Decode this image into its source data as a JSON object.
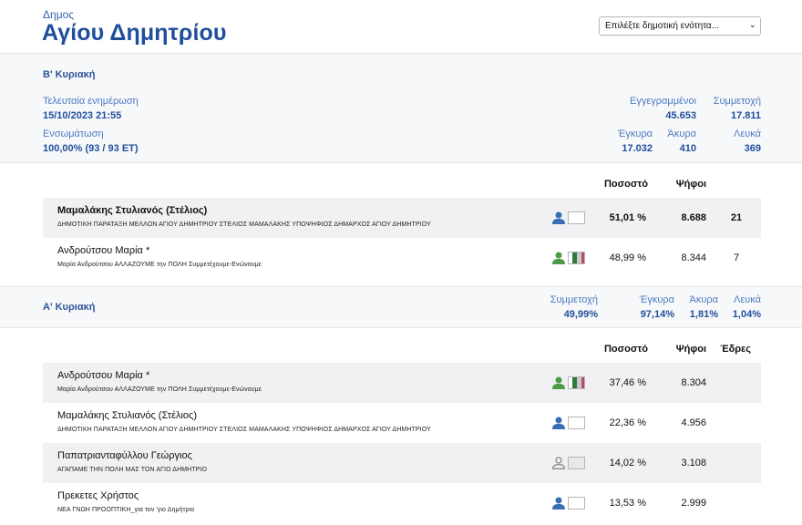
{
  "header": {
    "municipality_label": "Δημος",
    "municipality_name": "Αγίου Δημητρίου",
    "unit_select_value": "Επιλέξτε δημοτική ενότητα..."
  },
  "round_b": {
    "title": "Β' Κυριακή",
    "last_update_label": "Τελευταία ενημέρωση",
    "last_update_value": "15/10/2023 21:55",
    "integration_label": "Ενσωμάτωση",
    "integration_value": "100,00% (93 / 93 ΕΤ)",
    "registered_label": "Εγγεγραμμένοι",
    "registered_value": "45.653",
    "turnout_label": "Συμμετοχή",
    "turnout_value": "17.811",
    "valid_label": "Έγκυρα",
    "valid_value": "17.032",
    "invalid_label": "Άκυρα",
    "invalid_value": "410",
    "blank_label": "Λευκά",
    "blank_value": "369",
    "col_percent": "Ποσοστό",
    "col_votes": "Ψήφοι",
    "candidates": [
      {
        "name": "Μαμαλάκης Στυλιανός (Στέλιος)",
        "party": "ΔΗΜΟΤΙΚΗ ΠΑΡΑΤΑΞΗ ΜΕΛΛΟΝ ΑΓΙΟΥ ΔΗΜΗΤΡΙΟΥ ΣΤΕΛΙΟΣ ΜΑΜΑΛΑΚΗΣ ΥΠΟΨΗΦΙΟΣ ΔΗΜΑΡΧΟΣ ΑΓΙΟΥ ΔΗΜΗΤΡΙΟΥ",
        "percent": "51,01 %",
        "votes": "8.688",
        "seats": "21",
        "icon_color": "#3a6db5",
        "flag": "plain"
      },
      {
        "name": "Ανδρούτσου Μαρία *",
        "party": "Μαρία Ανδρούτσου ΑΛΛΑΖΟΥΜΕ την ΠΟΛΗ Συμμετέχουμε-Ενώνουμε",
        "percent": "48,99 %",
        "votes": "8.344",
        "seats": "7",
        "icon_color": "#4f9a44",
        "flag": "tricolor"
      }
    ]
  },
  "round_a": {
    "title": "Α' Κυριακή",
    "turnout_label": "Συμμετοχή",
    "turnout_value": "49,99%",
    "valid_label": "Έγκυρα",
    "valid_value": "97,14%",
    "invalid_label": "Άκυρα",
    "invalid_value": "1,81%",
    "blank_label": "Λευκά",
    "blank_value": "1,04%",
    "col_percent": "Ποσοστό",
    "col_votes": "Ψήφοι",
    "col_seats": "Έδρες",
    "candidates": [
      {
        "name": "Ανδρούτσου Μαρία *",
        "party": "Μαρία Ανδρούτσου ΑΛΛΑΖΟΥΜΕ την ΠΟΛΗ Συμμετέχουμε-Ενώνουμε",
        "percent": "37,46 %",
        "votes": "8.304",
        "icon_color": "#4f9a44",
        "flag": "tricolor"
      },
      {
        "name": "Μαμαλάκης Στυλιανός (Στέλιος)",
        "party": "ΔΗΜΟΤΙΚΗ ΠΑΡΑΤΑΞΗ ΜΕΛΛΟΝ ΑΓΙΟΥ ΔΗΜΗΤΡΙΟΥ ΣΤΕΛΙΟΣ ΜΑΜΑΛΑΚΗΣ ΥΠΟΨΗΦΙΟΣ ΔΗΜΑΡΧΟΣ ΑΓΙΟΥ ΔΗΜΗΤΡΙΟΥ",
        "percent": "22,36 %",
        "votes": "4.956",
        "icon_color": "#3a6db5",
        "flag": "plain"
      },
      {
        "name": "Παπατριανταφύλλου Γεώργιος",
        "party": "ΑΓΑΠΑΜΕ ΤΗΝ ΠΟΛΗ ΜΑΣ ΤΟΝ ΑΓΙΟ ΔΗΜΗΤΡΙΟ",
        "percent": "14,02 %",
        "votes": "3.108",
        "icon_color": "#8a8a8a",
        "flag": "grey"
      },
      {
        "name": "Πρεκετες Χρήστος",
        "party": "ΝΕΑ ΓΝΩΗ ΠΡΟΟΠΤΙΚΗ_για τον 'γιο Δημήτριο",
        "percent": "13,53 %",
        "votes": "2.999",
        "icon_color": "#3a6db5",
        "flag": "plain"
      }
    ]
  }
}
